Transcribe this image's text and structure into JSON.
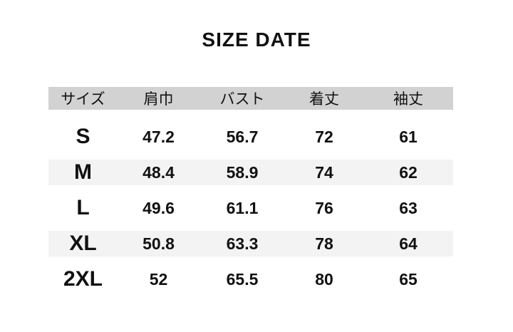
{
  "title": "SIZE DATE",
  "colors": {
    "header_bg": "#d2d2d2",
    "stripe_bg": "#f3f3f3",
    "text": "#111111",
    "page_bg": "#ffffff"
  },
  "chart_data": {
    "type": "table",
    "title": "SIZE DATE",
    "headers": [
      "サイズ",
      "肩巾",
      "バスト",
      "着丈",
      "袖丈"
    ],
    "rows": [
      {
        "size": "S",
        "values": [
          "47.2",
          "56.7",
          "72",
          "61"
        ]
      },
      {
        "size": "M",
        "values": [
          "48.4",
          "58.9",
          "74",
          "62"
        ]
      },
      {
        "size": "L",
        "values": [
          "49.6",
          "61.1",
          "76",
          "63"
        ]
      },
      {
        "size": "XL",
        "values": [
          "50.8",
          "63.3",
          "78",
          "64"
        ]
      },
      {
        "size": "2XL",
        "values": [
          "52",
          "65.5",
          "80",
          "65"
        ]
      }
    ]
  }
}
